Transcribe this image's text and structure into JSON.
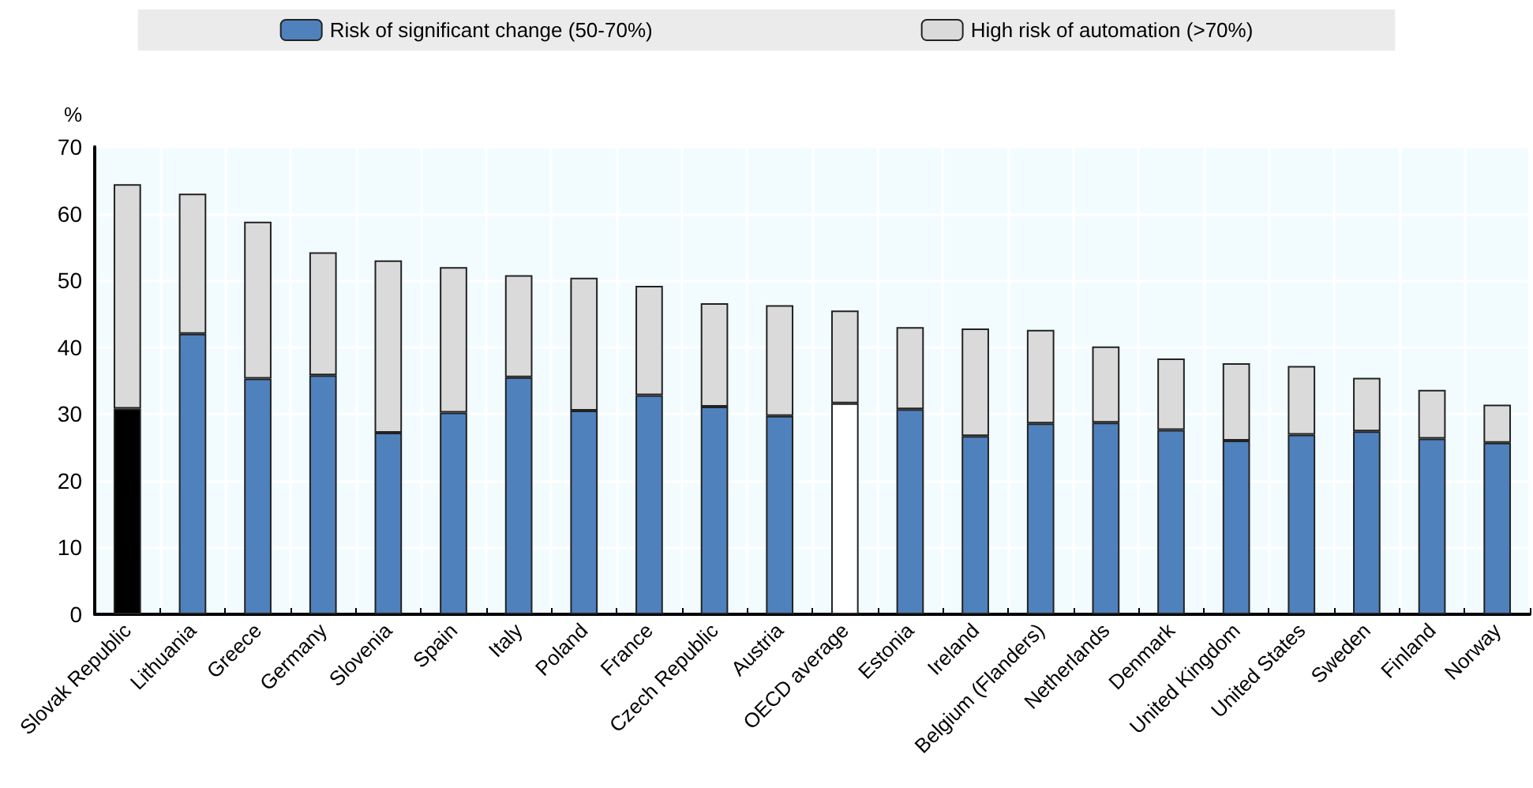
{
  "chart_data": {
    "type": "bar",
    "stacked": true,
    "ylabel": "%",
    "categories": [
      "Slovak Republic",
      "Lithuania",
      "Greece",
      "Germany",
      "Slovenia",
      "Spain",
      "Italy",
      "Poland",
      "France",
      "Czech Republic",
      "Austria",
      "OECD average",
      "Estonia",
      "Ireland",
      "Belgium (Flanders)",
      "Netherlands",
      "Denmark",
      "United Kingdom",
      "United States",
      "Sweden",
      "Finland",
      "Norway"
    ],
    "series": [
      {
        "name": "Risk of significant change (50-70%)",
        "color": "#4f81bd",
        "colors": [
          "#000000",
          "#4f81bd",
          "#4f81bd",
          "#4f81bd",
          "#4f81bd",
          "#4f81bd",
          "#4f81bd",
          "#4f81bd",
          "#4f81bd",
          "#4f81bd",
          "#4f81bd",
          "#ffffff",
          "#4f81bd",
          "#4f81bd",
          "#4f81bd",
          "#4f81bd",
          "#4f81bd",
          "#4f81bd",
          "#4f81bd",
          "#4f81bd",
          "#4f81bd",
          "#4f81bd"
        ],
        "values": [
          30.8,
          42.0,
          35.3,
          35.8,
          27.2,
          30.2,
          35.5,
          30.5,
          32.8,
          31.1,
          29.7,
          31.6,
          30.7,
          26.7,
          28.6,
          28.7,
          27.6,
          26.0,
          26.9,
          27.4,
          26.3,
          25.7
        ]
      },
      {
        "name": "High risk of automation (>70%)",
        "color": "#dadada",
        "values": [
          33.6,
          21.0,
          23.5,
          18.4,
          25.8,
          21.8,
          15.3,
          19.9,
          16.4,
          15.5,
          16.6,
          13.9,
          12.3,
          16.1,
          14.0,
          11.4,
          10.7,
          11.6,
          10.3,
          8.0,
          7.3,
          5.7
        ]
      }
    ],
    "ylim": [
      0,
      70
    ],
    "yticks": [
      0,
      10,
      20,
      30,
      40,
      50,
      60,
      70
    ],
    "grid": true,
    "legend": "top"
  }
}
